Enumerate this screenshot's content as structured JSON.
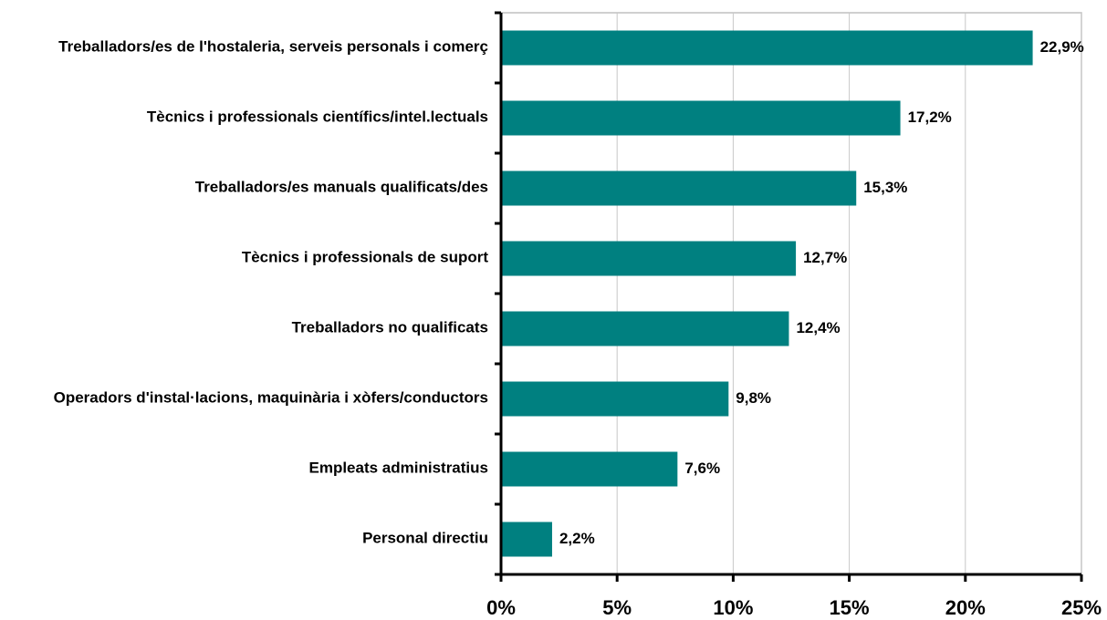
{
  "chart_data": {
    "type": "bar",
    "orientation": "horizontal",
    "categories": [
      "Treballadors/es de l'hostaleria, serveis personals i comerç",
      "Tècnics i professionals científics/intel.lectuals",
      "Treballadors/es manuals qualificats/des",
      "Tècnics i professionals de suport",
      "Treballadors no qualificats",
      "Operadors d'instal·lacions, maquinària i xòfers/conductors",
      "Empleats administratius",
      "Personal directiu"
    ],
    "values": [
      22.9,
      17.2,
      15.3,
      12.7,
      12.4,
      9.8,
      7.6,
      2.2
    ],
    "value_labels": [
      "22,9%",
      "17,2%",
      "15,3%",
      "12,7%",
      "12,4%",
      "9,8%",
      "7,6%",
      "2,2%"
    ],
    "color": "#008080",
    "xlim": [
      0,
      25
    ],
    "xticks": [
      {
        "value": 0,
        "label": "0%"
      },
      {
        "value": 5,
        "label": "5%"
      },
      {
        "value": 10,
        "label": "10%"
      },
      {
        "value": 15,
        "label": "15%"
      },
      {
        "value": 20,
        "label": "20%"
      },
      {
        "value": 25,
        "label": "25%"
      }
    ],
    "grid": true
  }
}
